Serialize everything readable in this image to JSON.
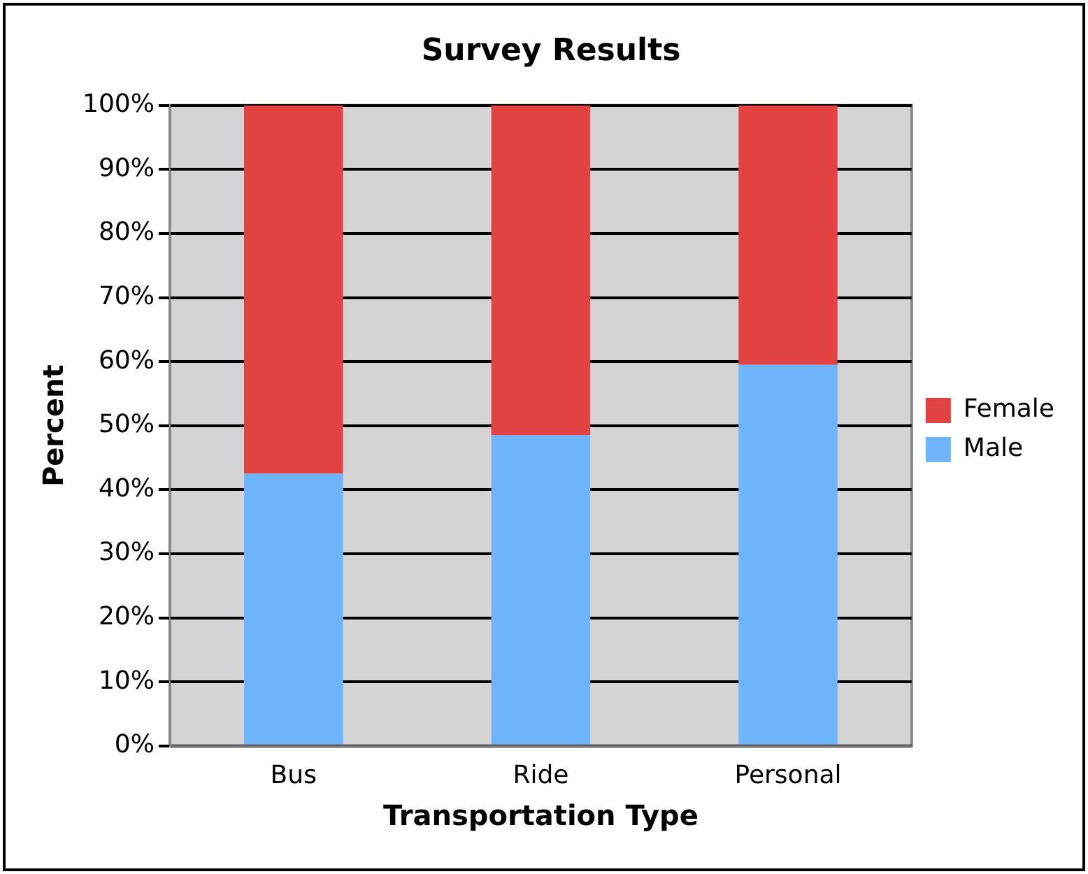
{
  "chart_data": {
    "type": "bar",
    "title": "Survey Results",
    "xlabel": "Transportation Type",
    "ylabel": "Percent",
    "categories": [
      "Bus",
      "Ride",
      "Personal"
    ],
    "stacked": true,
    "series": [
      {
        "name": "Male",
        "color": "#6eb4fb",
        "values": [
          42.5,
          48.5,
          59.5
        ]
      },
      {
        "name": "Female",
        "color": "#e34242",
        "values": [
          57.5,
          51.5,
          40.5
        ]
      }
    ],
    "ylim": [
      0,
      100
    ],
    "yticks": [
      {
        "value": 0,
        "label": "0%"
      },
      {
        "value": 10,
        "label": "10%"
      },
      {
        "value": 20,
        "label": "20%"
      },
      {
        "value": 30,
        "label": "30%"
      },
      {
        "value": 40,
        "label": "40%"
      },
      {
        "value": 50,
        "label": "50%"
      },
      {
        "value": 60,
        "label": "60%"
      },
      {
        "value": 70,
        "label": "70%"
      },
      {
        "value": 80,
        "label": "80%"
      },
      {
        "value": 90,
        "label": "90%"
      },
      {
        "value": 100,
        "label": "100%"
      }
    ],
    "grid": "y",
    "legend": "right"
  }
}
